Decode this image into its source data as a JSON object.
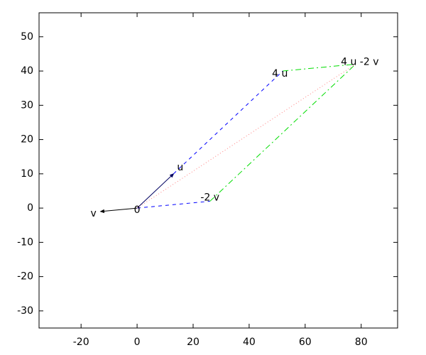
{
  "chart_data": {
    "type": "vector",
    "points": [
      {
        "label": "0",
        "x": 0,
        "y": 0
      },
      {
        "label": "u",
        "x": 13,
        "y": 10
      },
      {
        "label": "v",
        "x": -13,
        "y": -1
      },
      {
        "label": "-2 v",
        "x": 26,
        "y": 2
      },
      {
        "label": "4 u",
        "x": 52,
        "y": 40
      },
      {
        "label": "4 u -2 v",
        "x": 78,
        "y": 42
      }
    ],
    "segments": [
      {
        "from": "0",
        "to": "u",
        "color": "#000060",
        "style": "solid",
        "arrow": true
      },
      {
        "from": "0",
        "to": "v",
        "color": "#000000",
        "style": "solid",
        "arrow": true
      },
      {
        "from": "u",
        "to": "4 u",
        "color": "#0000ff",
        "style": "dashed",
        "arrow": false
      },
      {
        "from": "0",
        "to": "-2 v",
        "color": "#0000ff",
        "style": "dashed",
        "arrow": false
      },
      {
        "from": "-2 v",
        "to": "4 u -2 v",
        "color": "#00dd00",
        "style": "dashdot",
        "arrow": false
      },
      {
        "from": "4 u",
        "to": "4 u -2 v",
        "color": "#00dd00",
        "style": "dashdot",
        "arrow": false
      },
      {
        "from": "0",
        "to": "4 u -2 v",
        "color": "#ff8080",
        "style": "dotted",
        "arrow": false
      }
    ],
    "xlim": [
      -35,
      93
    ],
    "ylim": [
      -35,
      57
    ],
    "xticks": [
      -20,
      0,
      20,
      40,
      60,
      80
    ],
    "yticks": [
      -30,
      -20,
      -10,
      0,
      10,
      20,
      30,
      40,
      50
    ]
  }
}
